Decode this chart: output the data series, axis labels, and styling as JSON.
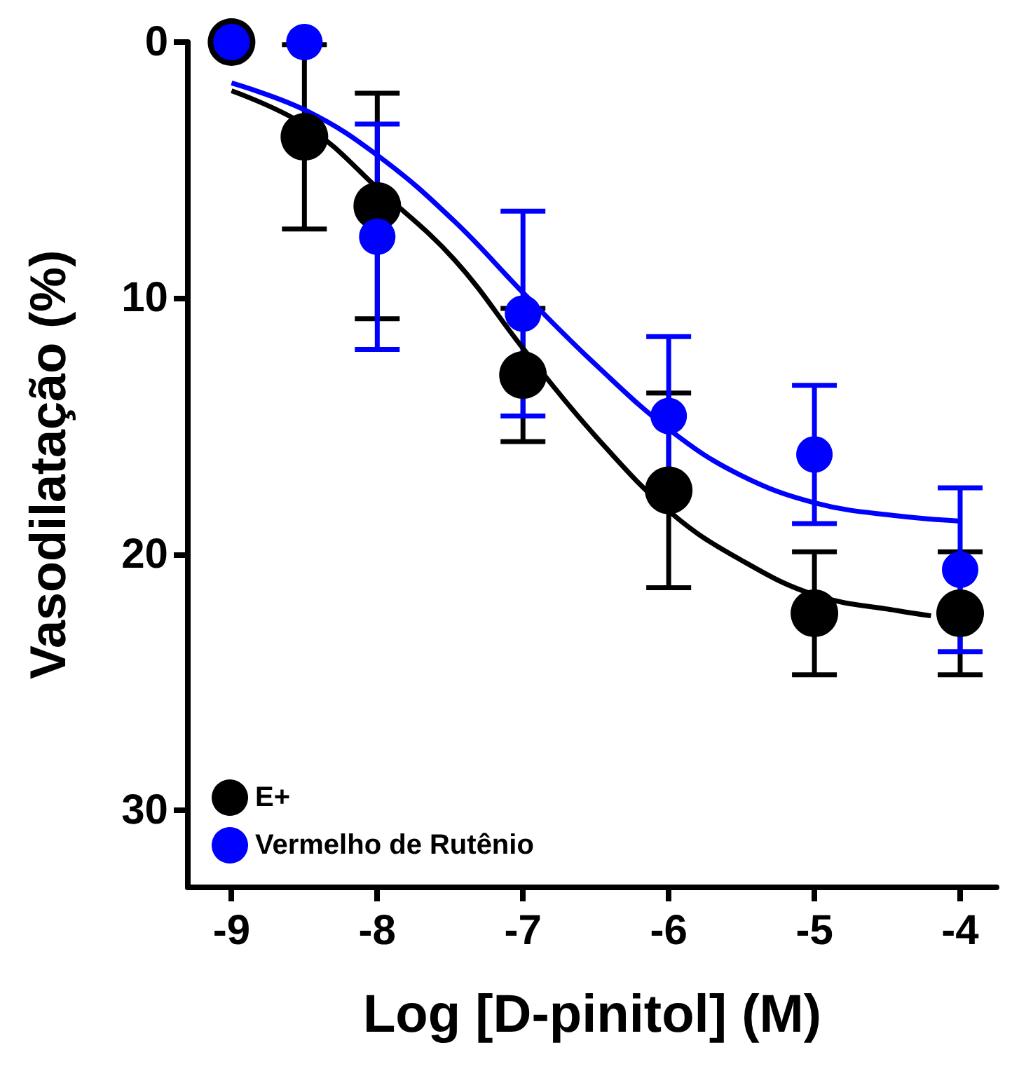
{
  "chart_data": {
    "type": "scatter",
    "xlabel": "Log [D-pinitol] (M)",
    "ylabel": "Vasodilatação (%)",
    "xlim": [
      -9.3,
      -3.75
    ],
    "xticks": [
      -9,
      -8,
      -7,
      -6,
      -5,
      -4
    ],
    "ylim": [
      33,
      0
    ],
    "yticks": [
      0,
      10,
      20,
      30
    ],
    "grid": false,
    "legend": "bottom left",
    "series": [
      {
        "name": "E+",
        "marker": "circle",
        "color": "#000000",
        "x": [
          -9,
          -8.5,
          -8,
          -7,
          -6,
          -5,
          -4
        ],
        "values": [
          0,
          3.7,
          6.4,
          13.0,
          17.5,
          22.3,
          22.3
        ],
        "errors": [
          null,
          3.6,
          4.4,
          2.6,
          3.8,
          2.4,
          2.4
        ]
      },
      {
        "name": "Vermelho de Rutênio",
        "marker": "circle",
        "color": "#0000ff",
        "x": [
          -9,
          -8.5,
          -8,
          -7,
          -6,
          -5,
          -4
        ],
        "values": [
          0,
          0,
          7.6,
          10.6,
          14.6,
          16.1,
          20.6
        ],
        "errors": [
          null,
          null,
          4.4,
          4.0,
          3.1,
          2.7,
          3.2
        ]
      },
      {
        "type": "line",
        "marker": "none",
        "color": "#000000",
        "x": [
          -9,
          -8.48,
          -7.98,
          -7.47,
          -6.98,
          -6.5,
          -5.98,
          -5.51,
          -4.99,
          -4.43,
          -4.2
        ],
        "values": [
          1.9,
          3.3,
          5.8,
          8.5,
          12.1,
          15.4,
          18.4,
          20.2,
          21.6,
          22.2,
          22.4
        ]
      },
      {
        "type": "line",
        "marker": "none",
        "color": "#0000ff",
        "x": [
          -9,
          -8.48,
          -7.98,
          -7.47,
          -6.98,
          -6.5,
          -5.98,
          -5.51,
          -4.99,
          -4.43,
          -4.0
        ],
        "values": [
          1.6,
          2.7,
          4.5,
          7.0,
          9.9,
          12.6,
          15.2,
          16.9,
          18.0,
          18.5,
          18.7
        ]
      }
    ]
  }
}
